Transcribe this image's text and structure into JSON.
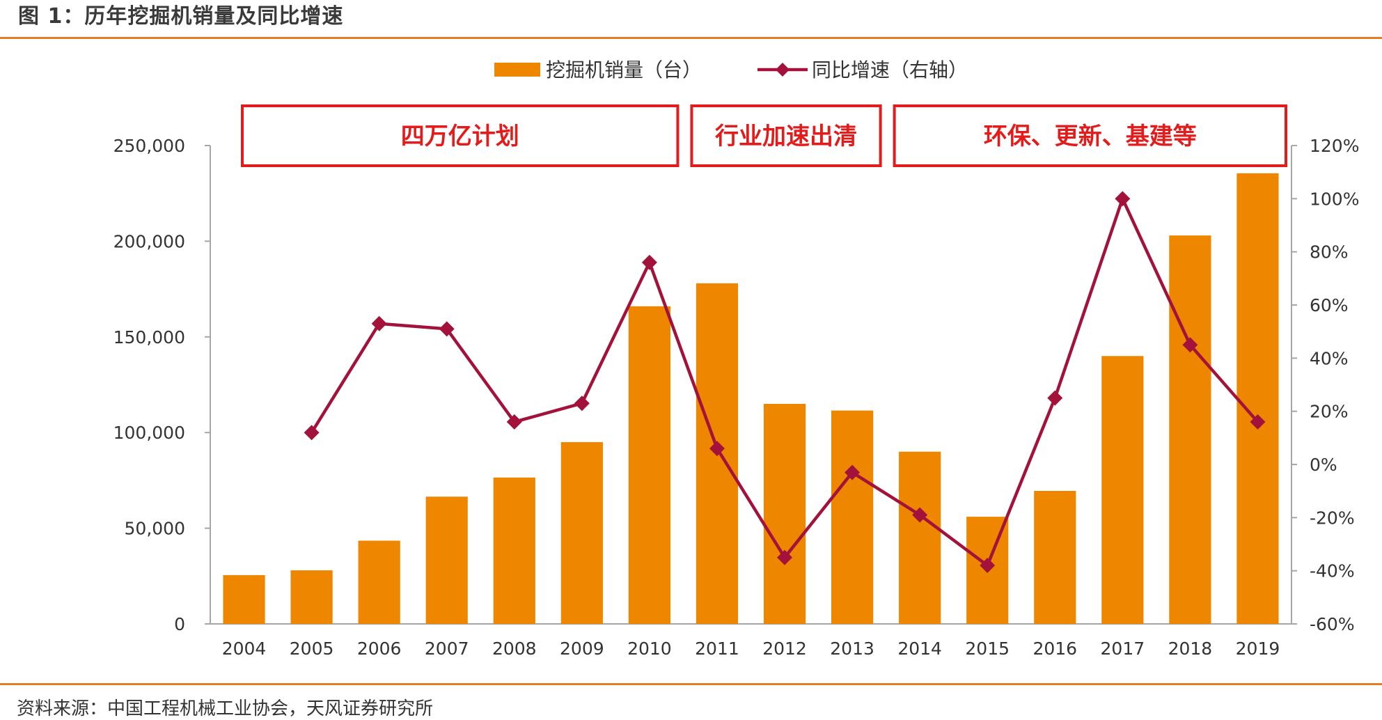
{
  "figure_title": "图 1：历年挖掘机销量及同比增速",
  "source": "资料来源：中国工程机械工业协会，天风证券研究所",
  "colors": {
    "bar": "#ee8600",
    "line": "#a3123a",
    "box": "#e31b1b",
    "axis": "#a6a6a6",
    "rule": "#e07d28"
  },
  "periods": [
    {
      "label": "四万亿计划",
      "from": "2004",
      "to": "2010"
    },
    {
      "label": "行业加速出清",
      "from": "2011",
      "to": "2013"
    },
    {
      "label": "环保、更新、基建等",
      "from": "2014",
      "to": "2019"
    }
  ],
  "chart_data": {
    "type": "bar",
    "categories": [
      "2004",
      "2005",
      "2006",
      "2007",
      "2008",
      "2009",
      "2010",
      "2011",
      "2012",
      "2013",
      "2014",
      "2015",
      "2016",
      "2017",
      "2018",
      "2019"
    ],
    "series": [
      {
        "name": "挖掘机销量（台）",
        "type": "bar",
        "axis": "left",
        "values": [
          25500,
          28000,
          43500,
          66500,
          76500,
          95000,
          166000,
          178000,
          115000,
          111500,
          90000,
          56000,
          69500,
          140000,
          203000,
          235500
        ]
      },
      {
        "name": "同比增速（右轴）",
        "type": "line",
        "axis": "right",
        "marker": "diamond",
        "values": [
          null,
          12,
          53,
          51,
          16,
          23,
          76,
          6,
          -35,
          -3,
          -19,
          -38,
          25,
          100,
          45,
          16
        ]
      }
    ],
    "y_left": {
      "min": 0,
      "max": 250000,
      "ticks": [
        0,
        50000,
        100000,
        150000,
        200000,
        250000
      ],
      "tick_labels": [
        "0",
        "50,000",
        "100,000",
        "150,000",
        "200,000",
        "250,000"
      ]
    },
    "y_right": {
      "min": -60,
      "max": 120,
      "ticks": [
        -60,
        -40,
        -20,
        0,
        20,
        40,
        60,
        80,
        100,
        120
      ],
      "tick_labels": [
        "-60%",
        "-40%",
        "-20%",
        "0%",
        "20%",
        "40%",
        "60%",
        "80%",
        "100%",
        "120%"
      ]
    },
    "grid": false,
    "legend": "top-center"
  }
}
